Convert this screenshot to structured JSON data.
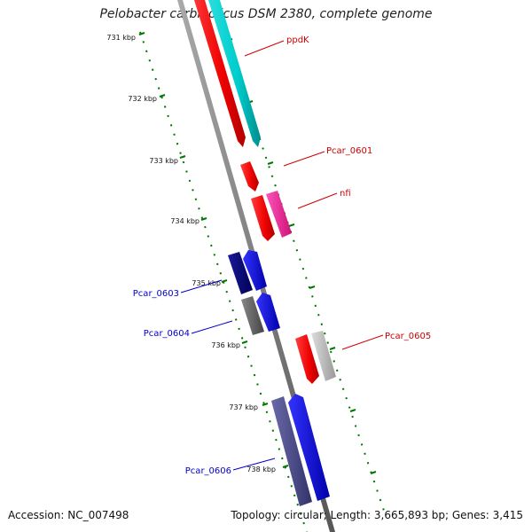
{
  "title": "Pelobacter carbinolicus DSM 2380, complete genome",
  "footer": {
    "accession": "Accession: NC_007498",
    "stats": "Topology: circular; Length: 3,665,893 bp; Genes: 3,415"
  },
  "scale": {
    "tick_labels": [
      "731 kbp",
      "732 kbp",
      "733 kbp",
      "734 kbp",
      "735 kbp",
      "736 kbp",
      "737 kbp",
      "738 kbp"
    ]
  },
  "genes": [
    {
      "name": "ppdK",
      "color": "#cc0000"
    },
    {
      "name": "Pcar_0601",
      "color": "#cc0000"
    },
    {
      "name": "nfi",
      "color": "#cc0000"
    },
    {
      "name": "Pcar_0603",
      "color": "#0000cc"
    },
    {
      "name": "Pcar_0604",
      "color": "#0000cc"
    },
    {
      "name": "Pcar_0605",
      "color": "#cc0000"
    },
    {
      "name": "Pcar_0606",
      "color": "#0000cc"
    }
  ],
  "colors": {
    "red": "#ff0000",
    "cyan": "#00cccc",
    "magenta": "#ff3399",
    "navy": "#000080",
    "blue": "#0000ff",
    "gray": "#666666",
    "silver": "#bbbbbb",
    "slate": "#4a4a8c",
    "backbone": "#808080",
    "scale": "#007700"
  }
}
